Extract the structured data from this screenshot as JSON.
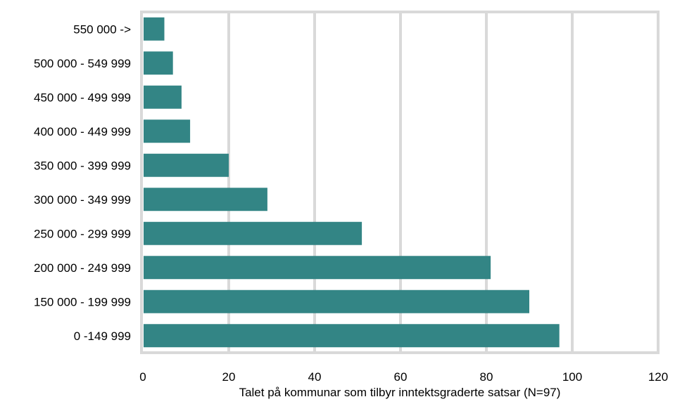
{
  "chart_data": {
    "type": "bar",
    "orientation": "horizontal",
    "categories": [
      "550 000 ->",
      "500 000 - 549 999",
      "450 000 - 499 999",
      "400 000 - 449 999",
      "350 000 - 399 999",
      "300 000 - 349 999",
      "250 000 - 299 999",
      "200 000 - 249 999",
      "150 000 - 199 999",
      "0 -149 999"
    ],
    "values": [
      5,
      7,
      9,
      11,
      20,
      29,
      51,
      81,
      90,
      97
    ],
    "xlabel": "Talet på kommunar som tilbyr inntektsgraderte satsar (N=97)",
    "ylabel": "",
    "xlim": [
      0,
      120
    ],
    "xticks": [
      "0",
      "20",
      "40",
      "60",
      "80",
      "100",
      "120"
    ],
    "grid": true,
    "bar_color": "#338585",
    "grid_color": "#d9d9d9"
  }
}
